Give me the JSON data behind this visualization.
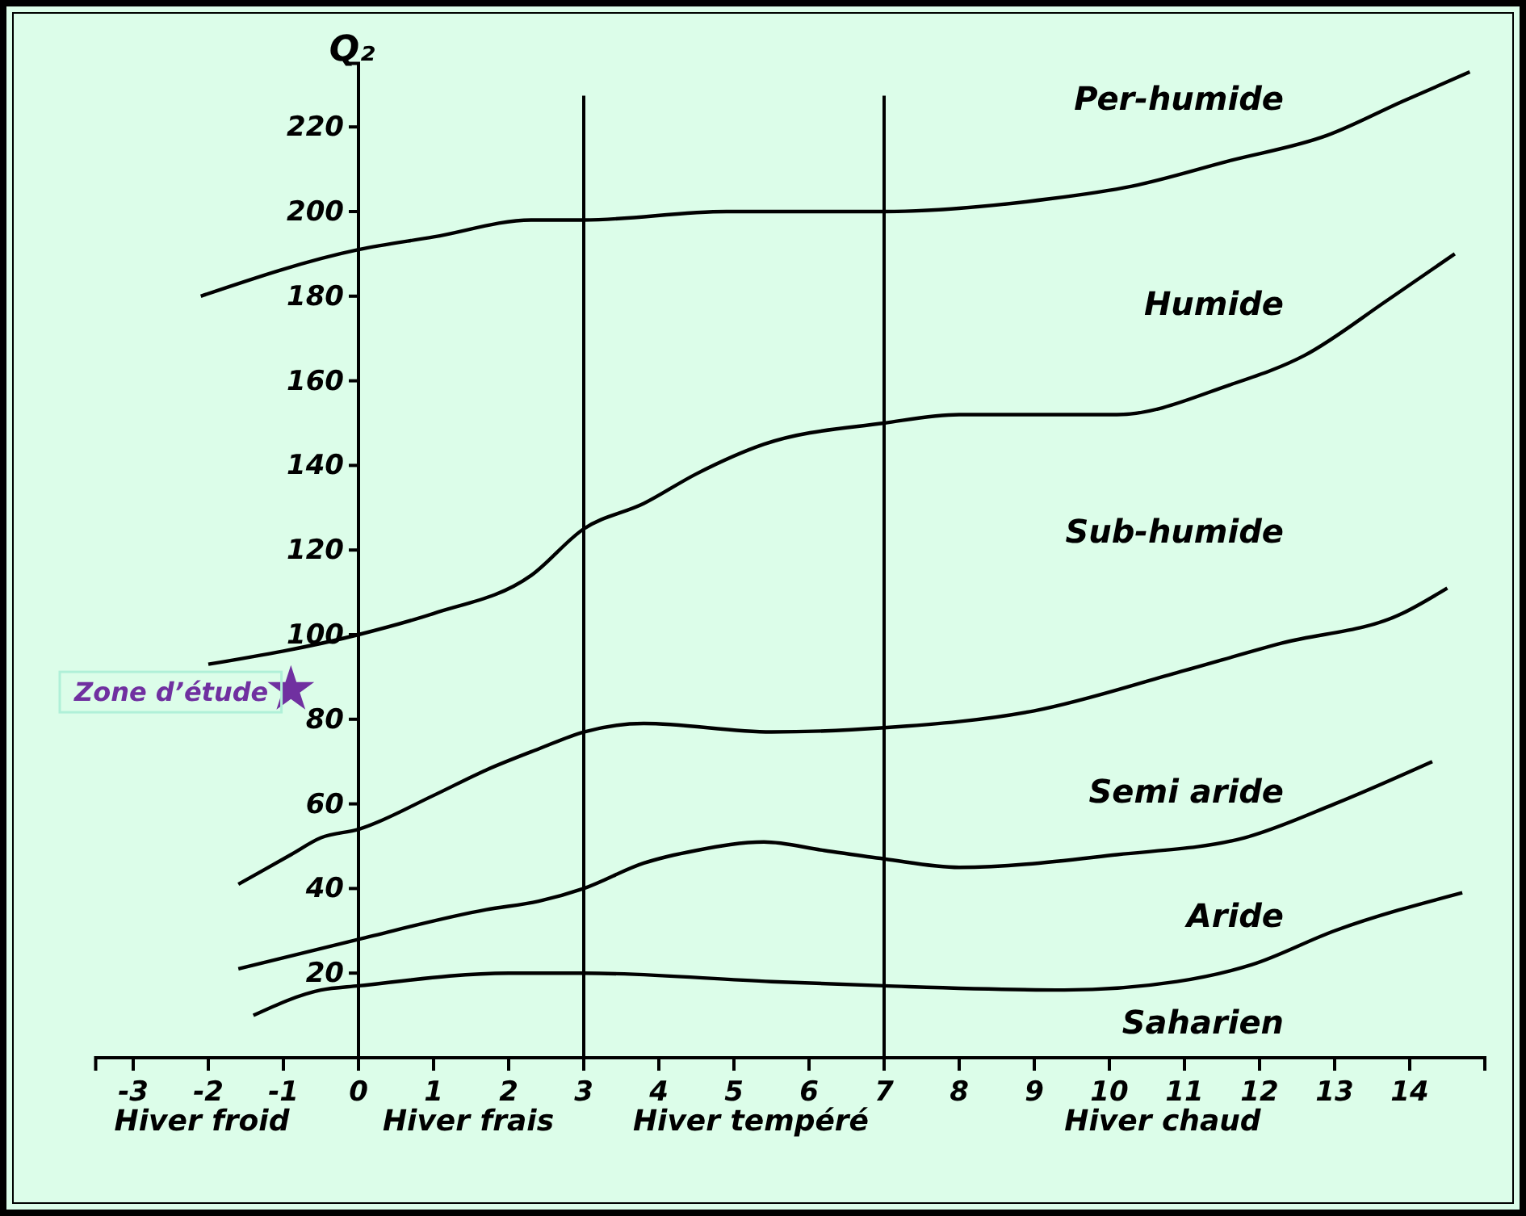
{
  "chart_data": {
    "type": "line",
    "ylabel": "Q₂",
    "xlim": [
      -3.5,
      15
    ],
    "ylim": [
      0,
      235
    ],
    "xticks": [
      -3,
      -2,
      -1,
      0,
      1,
      2,
      3,
      4,
      5,
      6,
      7,
      8,
      9,
      10,
      11,
      12,
      13,
      14
    ],
    "yticks": [
      20,
      40,
      60,
      80,
      100,
      120,
      140,
      160,
      180,
      200,
      220
    ],
    "grid": false,
    "marker": "none",
    "line_style": "solid",
    "ref_lines": [
      {
        "axis": "x",
        "value": 3
      },
      {
        "axis": "x",
        "value": 7
      }
    ],
    "series": [
      {
        "color": "#000000",
        "x": [
          -2.1,
          0,
          1,
          2.3,
          3,
          4.9,
          7,
          9.2,
          10.3,
          11.6,
          12.9,
          13.9,
          14.8
        ],
        "values": [
          180,
          191,
          194,
          198,
          198,
          200,
          200,
          203,
          206,
          212,
          218,
          226,
          233
        ]
      },
      {
        "color": "#000000",
        "x": [
          -2,
          0,
          1,
          2.3,
          3,
          3.8,
          4.5,
          5.4,
          7,
          8,
          10.1,
          11.6,
          12.6,
          13.7,
          14.6
        ],
        "values": [
          93,
          100,
          105,
          114,
          125,
          131,
          138,
          145,
          150,
          152,
          152,
          159,
          166,
          179,
          190
        ]
      },
      {
        "color": "#000000",
        "x": [
          -1.6,
          -0.9,
          -0.5,
          0,
          1,
          1.7,
          2.4,
          3,
          3.8,
          5.5,
          7,
          9,
          10.9,
          12.3,
          13.9,
          14.5
        ],
        "values": [
          41,
          48,
          52,
          54,
          62,
          68,
          73,
          77,
          79,
          77,
          78,
          82,
          91,
          98,
          105,
          111
        ]
      },
      {
        "color": "#000000",
        "x": [
          -1.6,
          0,
          1.7,
          2.4,
          3,
          3.8,
          4.5,
          5.4,
          6.2,
          7,
          8,
          10.1,
          11.8,
          13,
          14.3
        ],
        "values": [
          21,
          28,
          35,
          37,
          40,
          46,
          49,
          51,
          49,
          47,
          45,
          48,
          52,
          60,
          70
        ]
      },
      {
        "color": "#000000",
        "x": [
          -1.4,
          -0.5,
          0,
          2,
          3,
          5.5,
          7,
          9.4,
          10.9,
          11.9,
          13,
          14.7
        ],
        "values": [
          10,
          16,
          17,
          20,
          20,
          18,
          17,
          16,
          18,
          22,
          30,
          39
        ]
      },
      {
        "type": "scatter",
        "name": "Zone d’étude",
        "color": "#7030a0",
        "marker": "star",
        "x": [
          -0.9
        ],
        "values": [
          87
        ]
      }
    ],
    "annotations": [
      "Per-humide",
      "Humide",
      "Sub-humide",
      "Semi aride",
      "Aride",
      "Saharien",
      "Hiver froid",
      "Hiver frais",
      "Hiver tempéré",
      "Hiver chaud"
    ]
  }
}
